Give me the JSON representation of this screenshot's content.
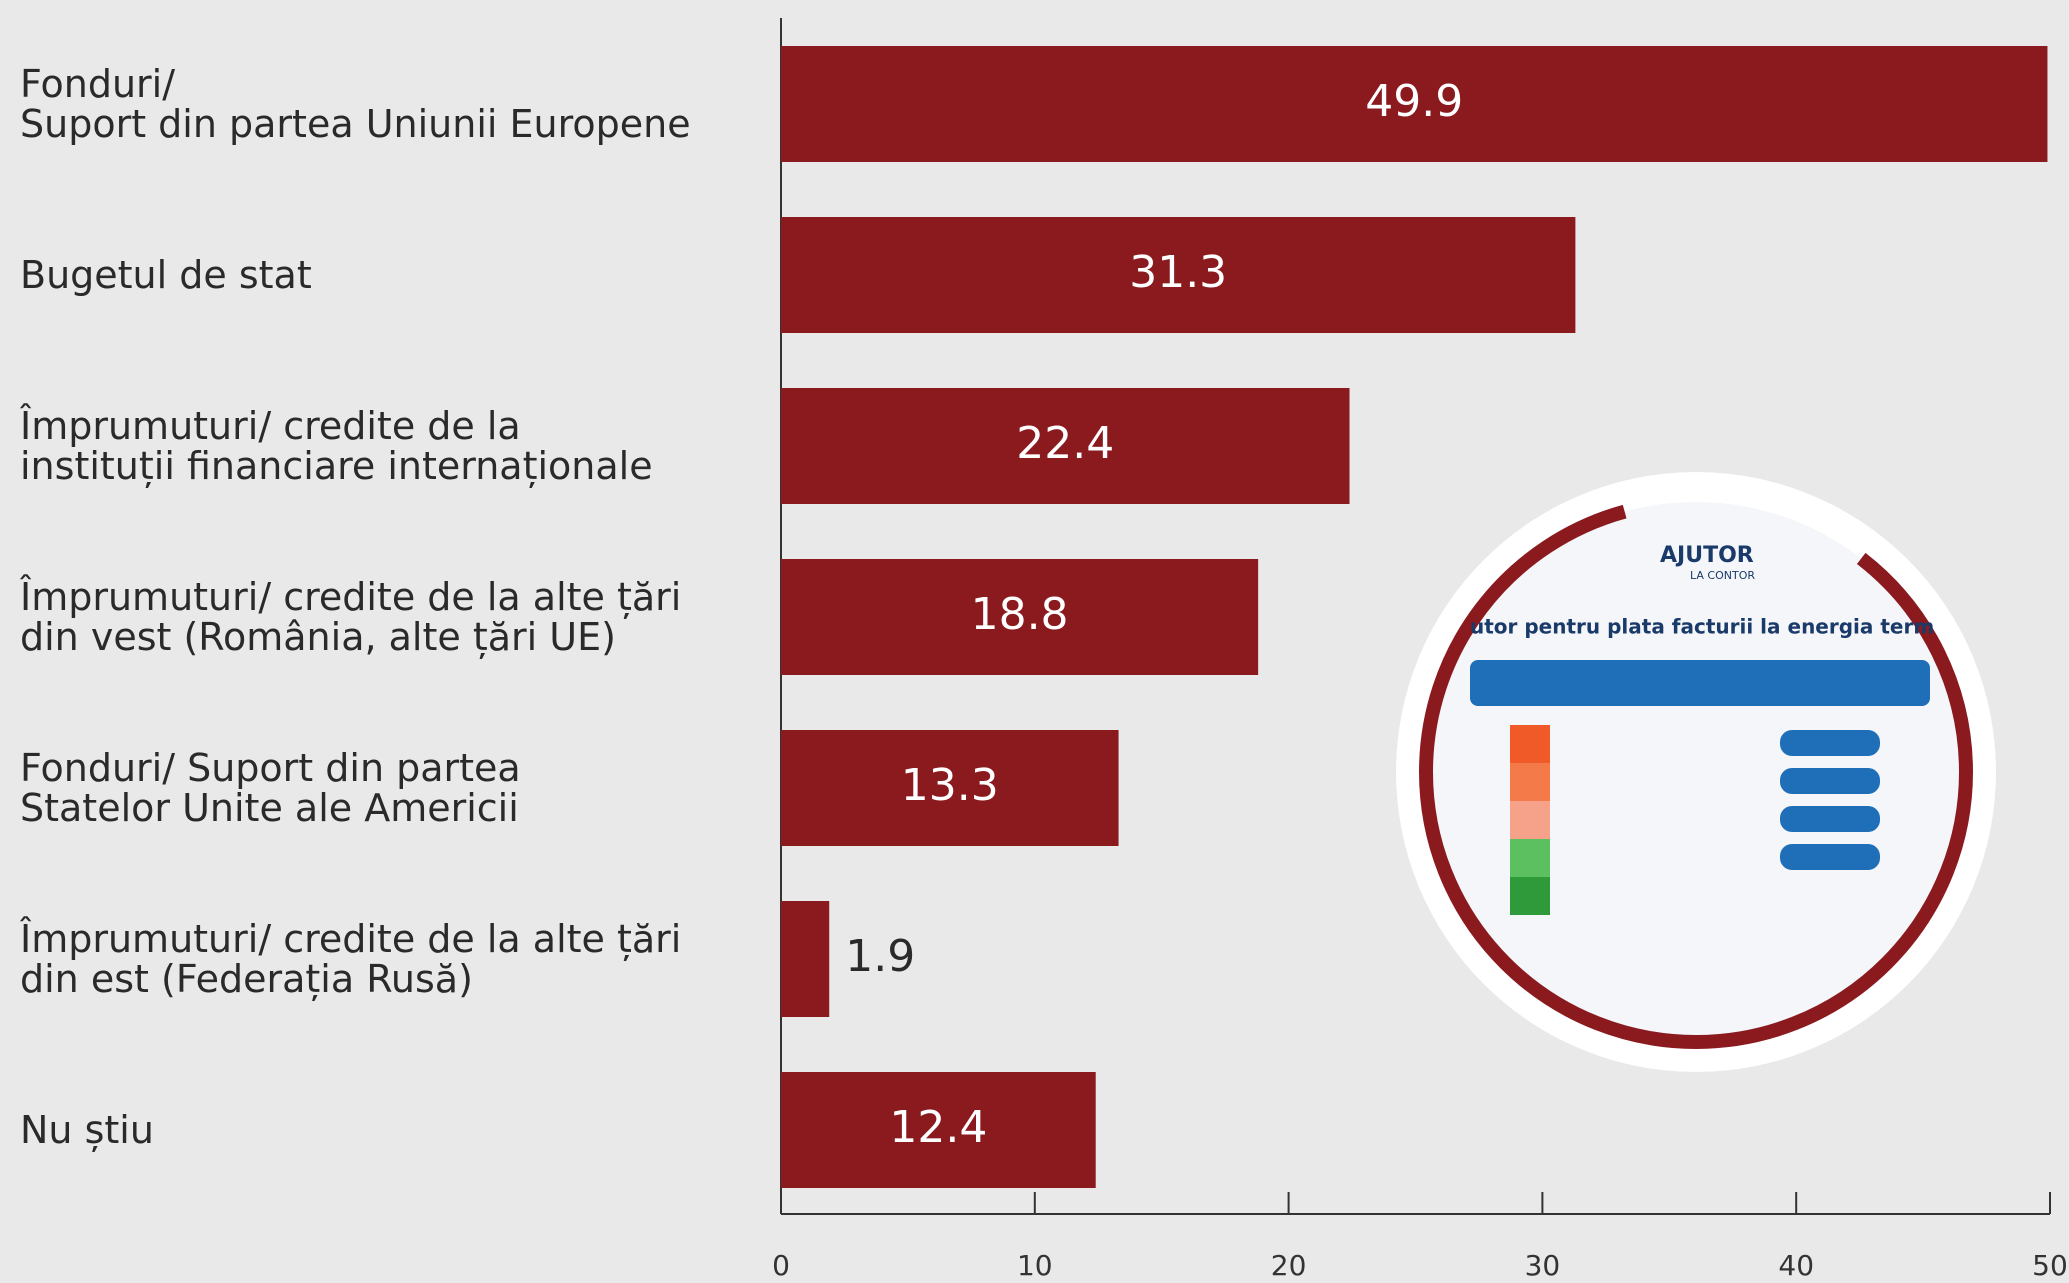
{
  "chart_data": {
    "type": "barh",
    "categories": [
      "Fonduri/\nSuport din partea Uniunii Europene",
      "Bugetul de stat",
      "Împrumuturi/ credite de la\ninstituții financiare internaționale",
      "Împrumuturi/ credite de la alte țări\ndin vest (România, alte țări UE)",
      "Fonduri/ Suport din partea\nStatelor Unite ale Americii",
      "Împrumuturi/ credite de la alte țări\ndin est (Federația Rusă)",
      "Nu știu"
    ],
    "values": [
      49.9,
      31.3,
      22.4,
      18.8,
      13.3,
      1.9,
      12.4
    ],
    "color": "#8b1a1f",
    "xlim": [
      0,
      50
    ],
    "xticks": [
      0,
      10,
      20,
      30,
      40,
      50
    ]
  },
  "inset": {
    "logo": "AJUTOR",
    "logo_sub": "LA CONTOR",
    "heading": "utor pentru plata facturii la energia term"
  }
}
